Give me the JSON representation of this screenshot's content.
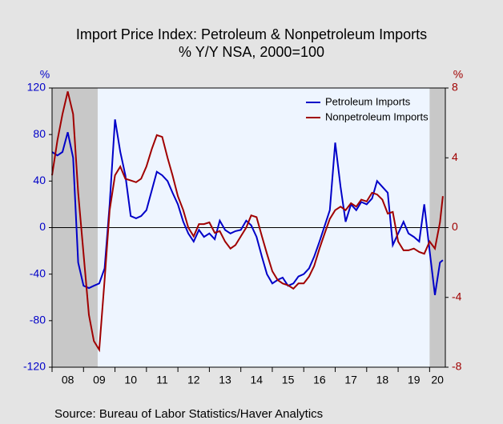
{
  "chart_data": {
    "type": "line",
    "title": "Import Price Index: Petroleum & Nonpetroleum Imports",
    "subtitle": "% Y/Y   NSA, 2000=100",
    "y_label": "%",
    "y2_label": "%",
    "source": "Source:  Bureau of Labor Statistics/Haver Analytics",
    "x": [
      2008,
      2008.17,
      2008.33,
      2008.5,
      2008.67,
      2008.83,
      2009,
      2009.17,
      2009.33,
      2009.5,
      2009.67,
      2009.83,
      2010,
      2010.17,
      2010.33,
      2010.5,
      2010.67,
      2010.83,
      2011,
      2011.17,
      2011.33,
      2011.5,
      2011.67,
      2011.83,
      2012,
      2012.17,
      2012.33,
      2012.5,
      2012.67,
      2012.83,
      2013,
      2013.17,
      2013.33,
      2013.5,
      2013.67,
      2013.83,
      2014,
      2014.17,
      2014.33,
      2014.5,
      2014.67,
      2014.83,
      2015,
      2015.17,
      2015.33,
      2015.5,
      2015.67,
      2015.83,
      2016,
      2016.17,
      2016.33,
      2016.5,
      2016.67,
      2016.83,
      2017,
      2017.17,
      2017.33,
      2017.5,
      2017.67,
      2017.83,
      2018,
      2018.17,
      2018.33,
      2018.5,
      2018.67,
      2018.83,
      2019,
      2019.17,
      2019.33,
      2019.5,
      2019.67,
      2019.83,
      2020,
      2020.17,
      2020.33,
      2020.42
    ],
    "xlim": [
      2008,
      2020.5
    ],
    "xticks": [
      {
        "value": 2008,
        "label": "08"
      },
      {
        "value": 2009,
        "label": "09"
      },
      {
        "value": 2010,
        "label": "10"
      },
      {
        "value": 2011,
        "label": "11"
      },
      {
        "value": 2012,
        "label": "12"
      },
      {
        "value": 2013,
        "label": "13"
      },
      {
        "value": 2014,
        "label": "14"
      },
      {
        "value": 2015,
        "label": "15"
      },
      {
        "value": 2016,
        "label": "16"
      },
      {
        "value": 2017,
        "label": "17"
      },
      {
        "value": 2018,
        "label": "18"
      },
      {
        "value": 2019,
        "label": "19"
      },
      {
        "value": 2020,
        "label": "20"
      }
    ],
    "ylim": [
      -120,
      120
    ],
    "yticks": [
      -120,
      -80,
      -40,
      0,
      40,
      80,
      120
    ],
    "y2lim": [
      -8,
      8
    ],
    "y2ticks": [
      -8,
      -4,
      0,
      4,
      8
    ],
    "shaded_periods": [
      [
        2008,
        2009.45
      ],
      [
        2020,
        2020.5
      ]
    ],
    "legend": "upper right",
    "series": [
      {
        "name": "Petroleum Imports",
        "color": "#0000c8",
        "values": [
          65,
          62,
          65,
          82,
          60,
          -30,
          -50,
          -52,
          -50,
          -48,
          -35,
          20,
          93,
          65,
          45,
          10,
          8,
          10,
          15,
          32,
          48,
          45,
          40,
          30,
          20,
          5,
          -5,
          -12,
          -2,
          -8,
          -5,
          -10,
          6,
          -2,
          -5,
          -3,
          -2,
          6,
          2,
          -8,
          -25,
          -40,
          -48,
          -45,
          -43,
          -50,
          -48,
          -42,
          -40,
          -35,
          -25,
          -12,
          2,
          15,
          73,
          35,
          5,
          20,
          15,
          22,
          20,
          25,
          40,
          35,
          30,
          -15,
          -5,
          5,
          -5,
          -8,
          -12,
          20,
          -20,
          -58,
          -30,
          -28
        ]
      },
      {
        "name": "Nonpetroleum Imports",
        "color": "#a00000",
        "axis": "y2",
        "values": [
          3,
          5,
          6.5,
          7.8,
          6.5,
          2,
          -1.5,
          -5,
          -6.5,
          -7,
          -3,
          1,
          3,
          3.5,
          2.8,
          2.7,
          2.6,
          2.8,
          3.5,
          4.5,
          5.3,
          5.2,
          4,
          3,
          1.8,
          1,
          0,
          -0.5,
          0.2,
          0.2,
          0.3,
          -0.3,
          -0.2,
          -0.8,
          -1.2,
          -1,
          -0.5,
          0,
          0.7,
          0.6,
          -0.5,
          -1.5,
          -2.5,
          -3,
          -3.2,
          -3.3,
          -3.5,
          -3.2,
          -3.2,
          -2.8,
          -2.2,
          -1.2,
          -0.3,
          0.5,
          1,
          1.2,
          1,
          1.4,
          1.2,
          1.6,
          1.5,
          2,
          1.9,
          1.6,
          0.8,
          0.9,
          -0.8,
          -1.3,
          -1.3,
          -1.2,
          -1.4,
          -1.5,
          -0.8,
          -1.2,
          0.3,
          1.8
        ]
      }
    ]
  }
}
